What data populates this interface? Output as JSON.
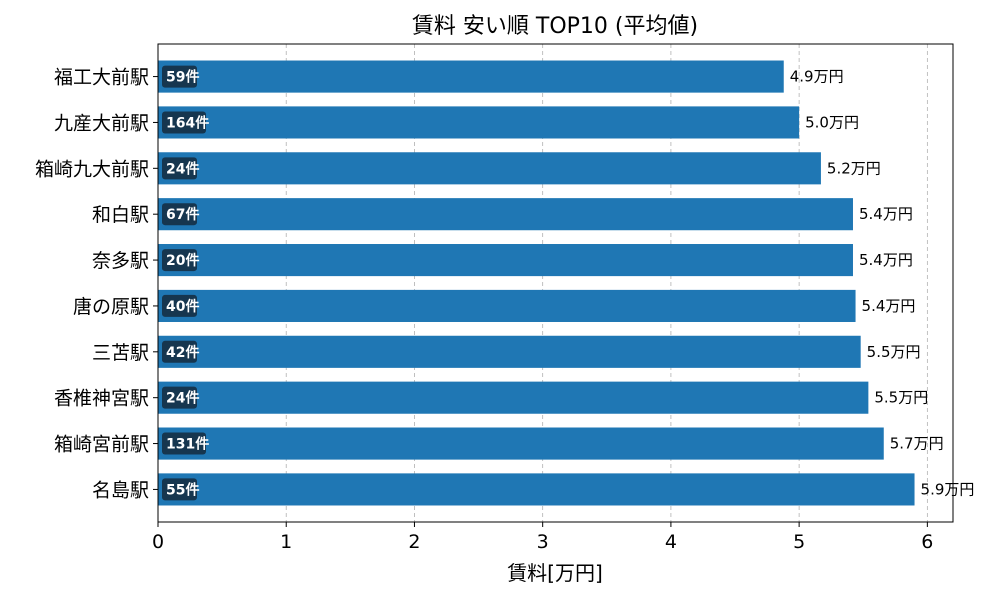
{
  "chart_data": {
    "type": "bar",
    "orientation": "horizontal",
    "title": "賃料 安い順 TOP10 (平均値)",
    "xlabel": "賃料[万円]",
    "ylabel": "",
    "xlim": [
      0,
      6.2
    ],
    "xticks": [
      0,
      1,
      2,
      3,
      4,
      5,
      6
    ],
    "grid": "x-dashed",
    "bar_color": "#1f77b4",
    "badge_color": "#16364f",
    "categories": [
      "福工大前駅",
      "九産大前駅",
      "箱崎九大前駅",
      "和白駅",
      "奈多駅",
      "唐の原駅",
      "三苫駅",
      "香椎神宮駅",
      "箱崎宮前駅",
      "名島駅"
    ],
    "values": [
      4.88,
      5.0,
      5.17,
      5.42,
      5.42,
      5.44,
      5.48,
      5.54,
      5.66,
      5.9
    ],
    "value_labels": [
      "4.9万円",
      "5.0万円",
      "5.2万円",
      "5.4万円",
      "5.4万円",
      "5.4万円",
      "5.5万円",
      "5.5万円",
      "5.7万円",
      "5.9万円"
    ],
    "count_labels": [
      "59件",
      "164件",
      "24件",
      "67件",
      "20件",
      "40件",
      "42件",
      "24件",
      "131件",
      "55件"
    ]
  }
}
